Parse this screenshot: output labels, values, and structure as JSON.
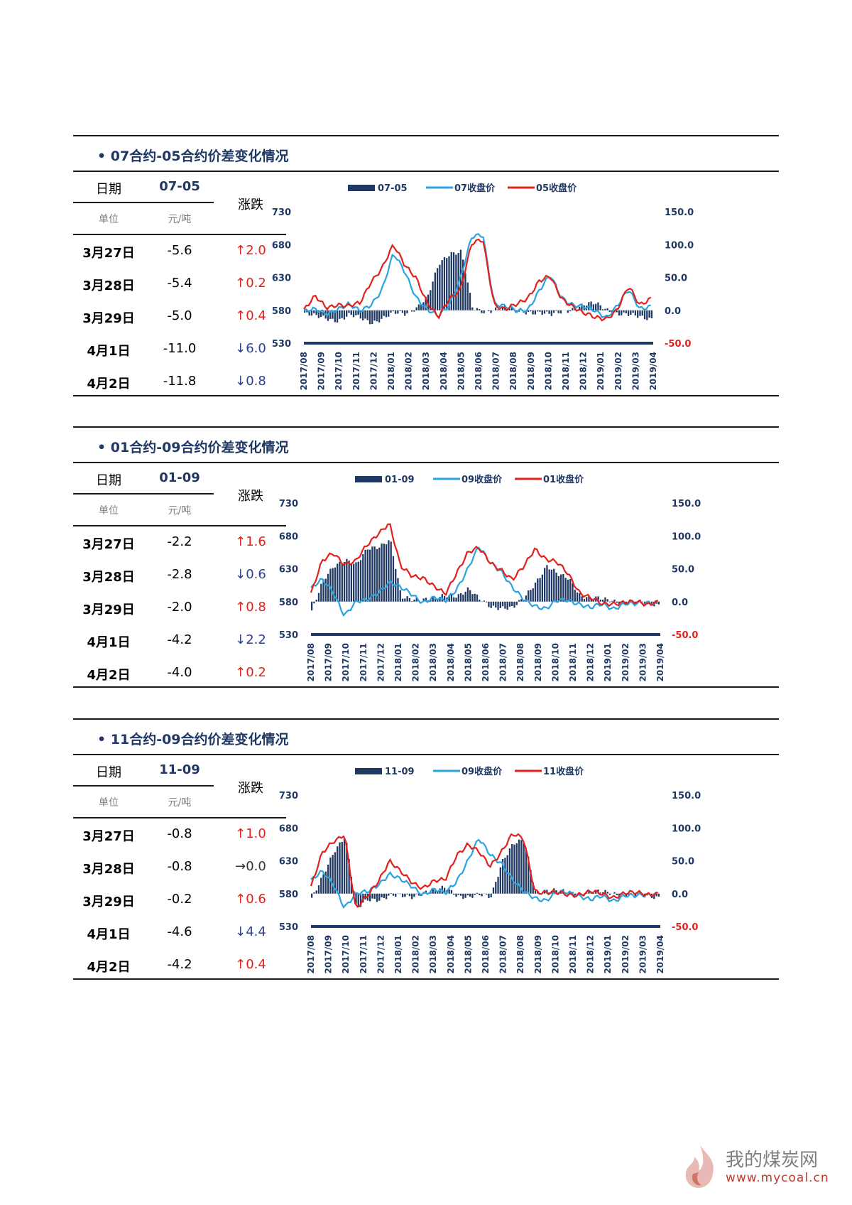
{
  "panels": [
    {
      "title": "• 07合约-05合约价差变化情况",
      "table": {
        "date_header": "日期",
        "code_header": "07-05",
        "change_header": "涨跌",
        "unit_date": "单位",
        "unit_value": "元/吨",
        "rows": [
          {
            "date": "3月27日",
            "value": "-5.6",
            "change": "↑2.0",
            "dir": "up"
          },
          {
            "date": "3月28日",
            "value": "-5.4",
            "change": "↑0.2",
            "dir": "up"
          },
          {
            "date": "3月29日",
            "value": "-5.0",
            "change": "↑0.4",
            "dir": "up"
          },
          {
            "date": "4月1日",
            "value": "-11.0",
            "change": "↓6.0",
            "dir": "down"
          },
          {
            "date": "4月2日",
            "value": "-11.8",
            "change": "↓0.8",
            "dir": "down"
          }
        ]
      }
    },
    {
      "title": "• 01合约-09合约价差变化情况",
      "table": {
        "date_header": "日期",
        "code_header": "01-09",
        "change_header": "涨跌",
        "unit_date": "单位",
        "unit_value": "元/吨",
        "rows": [
          {
            "date": "3月27日",
            "value": "-2.2",
            "change": "↑1.6",
            "dir": "up"
          },
          {
            "date": "3月28日",
            "value": "-2.8",
            "change": "↓0.6",
            "dir": "down"
          },
          {
            "date": "3月29日",
            "value": "-2.0",
            "change": "↑0.8",
            "dir": "up"
          },
          {
            "date": "4月1日",
            "value": "-4.2",
            "change": "↓2.2",
            "dir": "down"
          },
          {
            "date": "4月2日",
            "value": "-4.0",
            "change": "↑0.2",
            "dir": "up"
          }
        ]
      }
    },
    {
      "title": "• 11合约-09合约价差变化情况",
      "table": {
        "date_header": "日期",
        "code_header": "11-09",
        "change_header": "涨跌",
        "unit_date": "单位",
        "unit_value": "元/吨",
        "rows": [
          {
            "date": "3月27日",
            "value": "-0.8",
            "change": "↑1.0",
            "dir": "up"
          },
          {
            "date": "3月28日",
            "value": "-0.8",
            "change": "→0.0",
            "dir": "flat"
          },
          {
            "date": "3月29日",
            "value": "-0.2",
            "change": "↑0.6",
            "dir": "up"
          },
          {
            "date": "4月1日",
            "value": "-4.6",
            "change": "↓4.4",
            "dir": "down"
          },
          {
            "date": "4月2日",
            "value": "-4.2",
            "change": "↑0.4",
            "dir": "up"
          }
        ]
      }
    }
  ],
  "watermark": {
    "name": "我的煤炭网",
    "url": "www.mycoal.cn"
  },
  "chart_data": [
    {
      "type": "bar+line",
      "legend": [
        "07-05",
        "07收盘价",
        "05收盘价"
      ],
      "colors": {
        "bar": "#1f3864",
        "line1": "#2aa3e0",
        "line2": "#e2201c"
      },
      "left_axis": {
        "ticks": [
          "730",
          "680",
          "630",
          "580",
          "530"
        ],
        "range": [
          530,
          730
        ]
      },
      "right_axis": {
        "ticks": [
          "150.0",
          "100.0",
          "50.0",
          "0.0",
          "-50.0"
        ],
        "range": [
          -50,
          150
        ]
      },
      "x_labels": [
        "2017/08",
        "2017/09",
        "2017/10",
        "2017/11",
        "2017/12",
        "2018/01",
        "2018/02",
        "2018/03",
        "2018/04",
        "2018/05",
        "2018/06",
        "2018/07",
        "2018/08",
        "2018/09",
        "2018/10",
        "2018/11",
        "2018/12",
        "2019/01",
        "2019/02",
        "2019/03",
        "2019/04"
      ],
      "line1_anchors": [
        578,
        580,
        575,
        583,
        588,
        578,
        590,
        612,
        665,
        640,
        602,
        580,
        570,
        590,
        630,
        690,
        695,
        592,
        585,
        578,
        582,
        610,
        632,
        600,
        590,
        585,
        578,
        570,
        588,
        610,
        582,
        588
      ],
      "line2_anchors": [
        580,
        600,
        585,
        590,
        585,
        590,
        625,
        645,
        678,
        650,
        632,
        590,
        568,
        600,
        612,
        680,
        688,
        590,
        580,
        588,
        600,
        625,
        630,
        598,
        588,
        575,
        568,
        568,
        582,
        615,
        588,
        600
      ],
      "bar_anchors": [
        -5,
        -10,
        -12,
        -15,
        -8,
        -12,
        -18,
        -12,
        -5,
        -5,
        5,
        20,
        70,
        88,
        90,
        2,
        -3,
        3,
        5,
        -3,
        -2,
        -3,
        -8,
        -2,
        3,
        8,
        10,
        2,
        -5,
        -8,
        -10,
        -11.8
      ]
    },
    {
      "type": "bar+line",
      "legend": [
        "01-09",
        "09收盘价",
        "01收盘价"
      ],
      "colors": {
        "bar": "#1f3864",
        "line1": "#2aa3e0",
        "line2": "#e2201c"
      },
      "left_axis": {
        "ticks": [
          "730",
          "680",
          "630",
          "580",
          "530"
        ],
        "range": [
          530,
          730
        ]
      },
      "right_axis": {
        "ticks": [
          "150.0",
          "100.0",
          "50.0",
          "0.0",
          "-50.0"
        ],
        "range": [
          -50,
          150
        ]
      },
      "x_labels": [
        "2017/08",
        "2017/09",
        "2017/10",
        "2017/11",
        "2017/12",
        "2018/01",
        "2018/02",
        "2018/03",
        "2018/04",
        "2018/05",
        "2018/06",
        "2018/07",
        "2018/08",
        "2018/09",
        "2018/10",
        "2018/11",
        "2018/12",
        "2019/01",
        "2019/02",
        "2019/03",
        "2019/04"
      ],
      "line1_anchors": [
        600,
        612,
        595,
        560,
        578,
        582,
        595,
        610,
        600,
        592,
        580,
        585,
        580,
        600,
        630,
        662,
        640,
        628,
        600,
        582,
        575,
        570,
        580,
        582,
        578,
        570,
        575,
        570,
        578,
        575,
        578,
        580
      ],
      "line2_anchors": [
        592,
        640,
        655,
        638,
        640,
        665,
        685,
        700,
        632,
        620,
        618,
        602,
        590,
        625,
        655,
        660,
        640,
        630,
        612,
        632,
        662,
        645,
        638,
        622,
        595,
        585,
        575,
        578,
        580,
        578,
        575,
        582
      ],
      "bar_anchors": [
        -15,
        30,
        55,
        65,
        55,
        80,
        85,
        95,
        5,
        4,
        5,
        4,
        8,
        10,
        20,
        2,
        -8,
        -8,
        -10,
        5,
        30,
        55,
        40,
        35,
        10,
        5,
        3,
        2,
        -3,
        -2,
        -2,
        -4.0
      ]
    },
    {
      "type": "bar+line",
      "legend": [
        "11-09",
        "09收盘价",
        "11收盘价"
      ],
      "colors": {
        "bar": "#1f3864",
        "line1": "#2aa3e0",
        "line2": "#e2201c"
      },
      "left_axis": {
        "ticks": [
          "730",
          "680",
          "630",
          "580",
          "530"
        ],
        "range": [
          530,
          730
        ]
      },
      "right_axis": {
        "ticks": [
          "150.0",
          "100.0",
          "50.0",
          "0.0",
          "-50.0"
        ],
        "range": [
          -50,
          150
        ]
      },
      "x_labels": [
        "2017/08",
        "2017/09",
        "2017/10",
        "2017/11",
        "2017/12",
        "2018/01",
        "2018/02",
        "2018/03",
        "2018/04",
        "2018/05",
        "2018/06",
        "2018/07",
        "2018/08",
        "2018/09",
        "2018/10",
        "2018/11",
        "2018/12",
        "2019/01",
        "2019/02",
        "2019/03",
        "2019/04"
      ],
      "line1_anchors": [
        600,
        612,
        595,
        560,
        578,
        582,
        595,
        610,
        600,
        592,
        580,
        585,
        580,
        600,
        630,
        662,
        640,
        628,
        600,
        582,
        575,
        570,
        580,
        582,
        578,
        570,
        575,
        570,
        578,
        575,
        578,
        582
      ],
      "line2_anchors": [
        590,
        640,
        660,
        672,
        555,
        575,
        600,
        630,
        612,
        598,
        590,
        598,
        600,
        640,
        655,
        642,
        622,
        645,
        670,
        662,
        585,
        582,
        580,
        578,
        580,
        583,
        578,
        575,
        582,
        580,
        578,
        582
      ],
      "bar_anchors": [
        -8,
        25,
        65,
        90,
        -25,
        -10,
        -8,
        -2,
        -5,
        -5,
        3,
        5,
        8,
        -2,
        -5,
        -3,
        -5,
        50,
        75,
        80,
        3,
        5,
        3,
        2,
        1,
        2,
        2,
        1,
        -2,
        -3,
        -4,
        -4.2
      ]
    }
  ]
}
